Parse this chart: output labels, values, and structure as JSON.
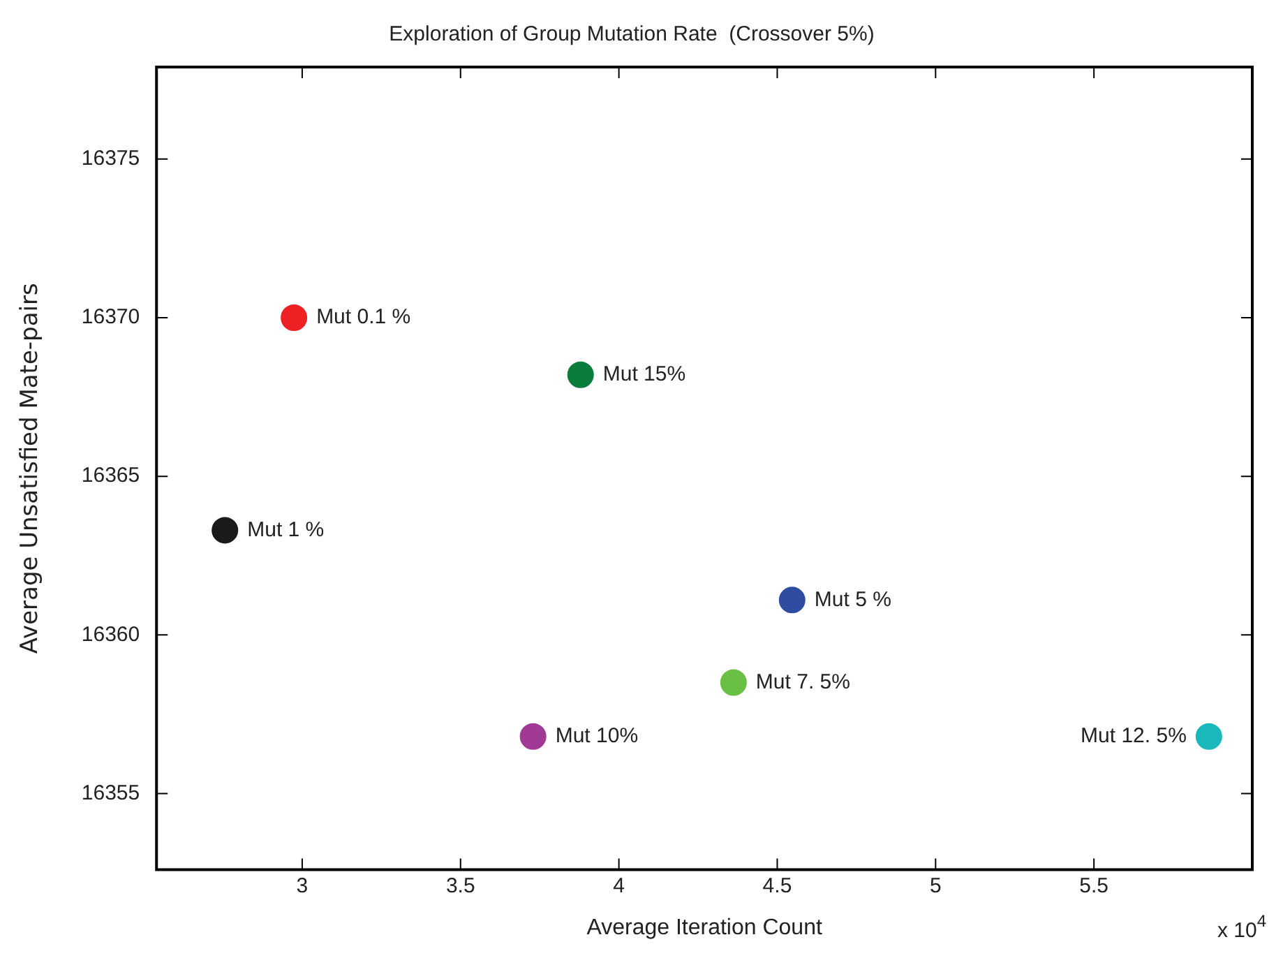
{
  "chart_data": {
    "type": "scatter",
    "title": "Exploration of Group Mutation Rate  (Crossover 5%)",
    "xlabel": "Average Iteration Count",
    "ylabel": "Average Unsatisfied Mate-pairs",
    "annotations": [
      "x 10$^{4}$"
    ],
    "series": [
      {
        "name": "Mut 0.1 %",
        "color": "#ee2024",
        "x": [
          2.974
        ],
        "values": [
          16370.0
        ]
      },
      {
        "name": "Mut 15%",
        "color": "#0a7d3c",
        "x": [
          3.879
        ],
        "values": [
          16368.2
        ]
      },
      {
        "name": "Mut 1 %",
        "color": "#1a1a1a",
        "x": [
          2.756
        ],
        "values": [
          16363.3
        ]
      },
      {
        "name": "Mut 5 %",
        "color": "#2e4da0",
        "x": [
          4.547
        ],
        "values": [
          16361.1
        ]
      },
      {
        "name": "Mut 7. 5%",
        "color": "#6abf45",
        "x": [
          4.362
        ],
        "values": [
          16358.5
        ]
      },
      {
        "name": "Mut 10%",
        "color": "#a03a95",
        "x": [
          3.729
        ],
        "values": [
          16356.8
        ]
      },
      {
        "name": "Mut 12. 5%",
        "color": "#1ab8bb",
        "x": [
          5.863
        ],
        "values": [
          16356.8
        ]
      }
    ],
    "xlim": [
      2.54,
      6.0
    ],
    "xticks": [
      3,
      3.5,
      4,
      4.5,
      5,
      5.5
    ],
    "ylim": [
      16352.6,
      16377.9
    ],
    "yticks": [
      16355,
      16360,
      16365,
      16370,
      16375
    ],
    "grid": false,
    "legend": false,
    "marker": "circle"
  }
}
